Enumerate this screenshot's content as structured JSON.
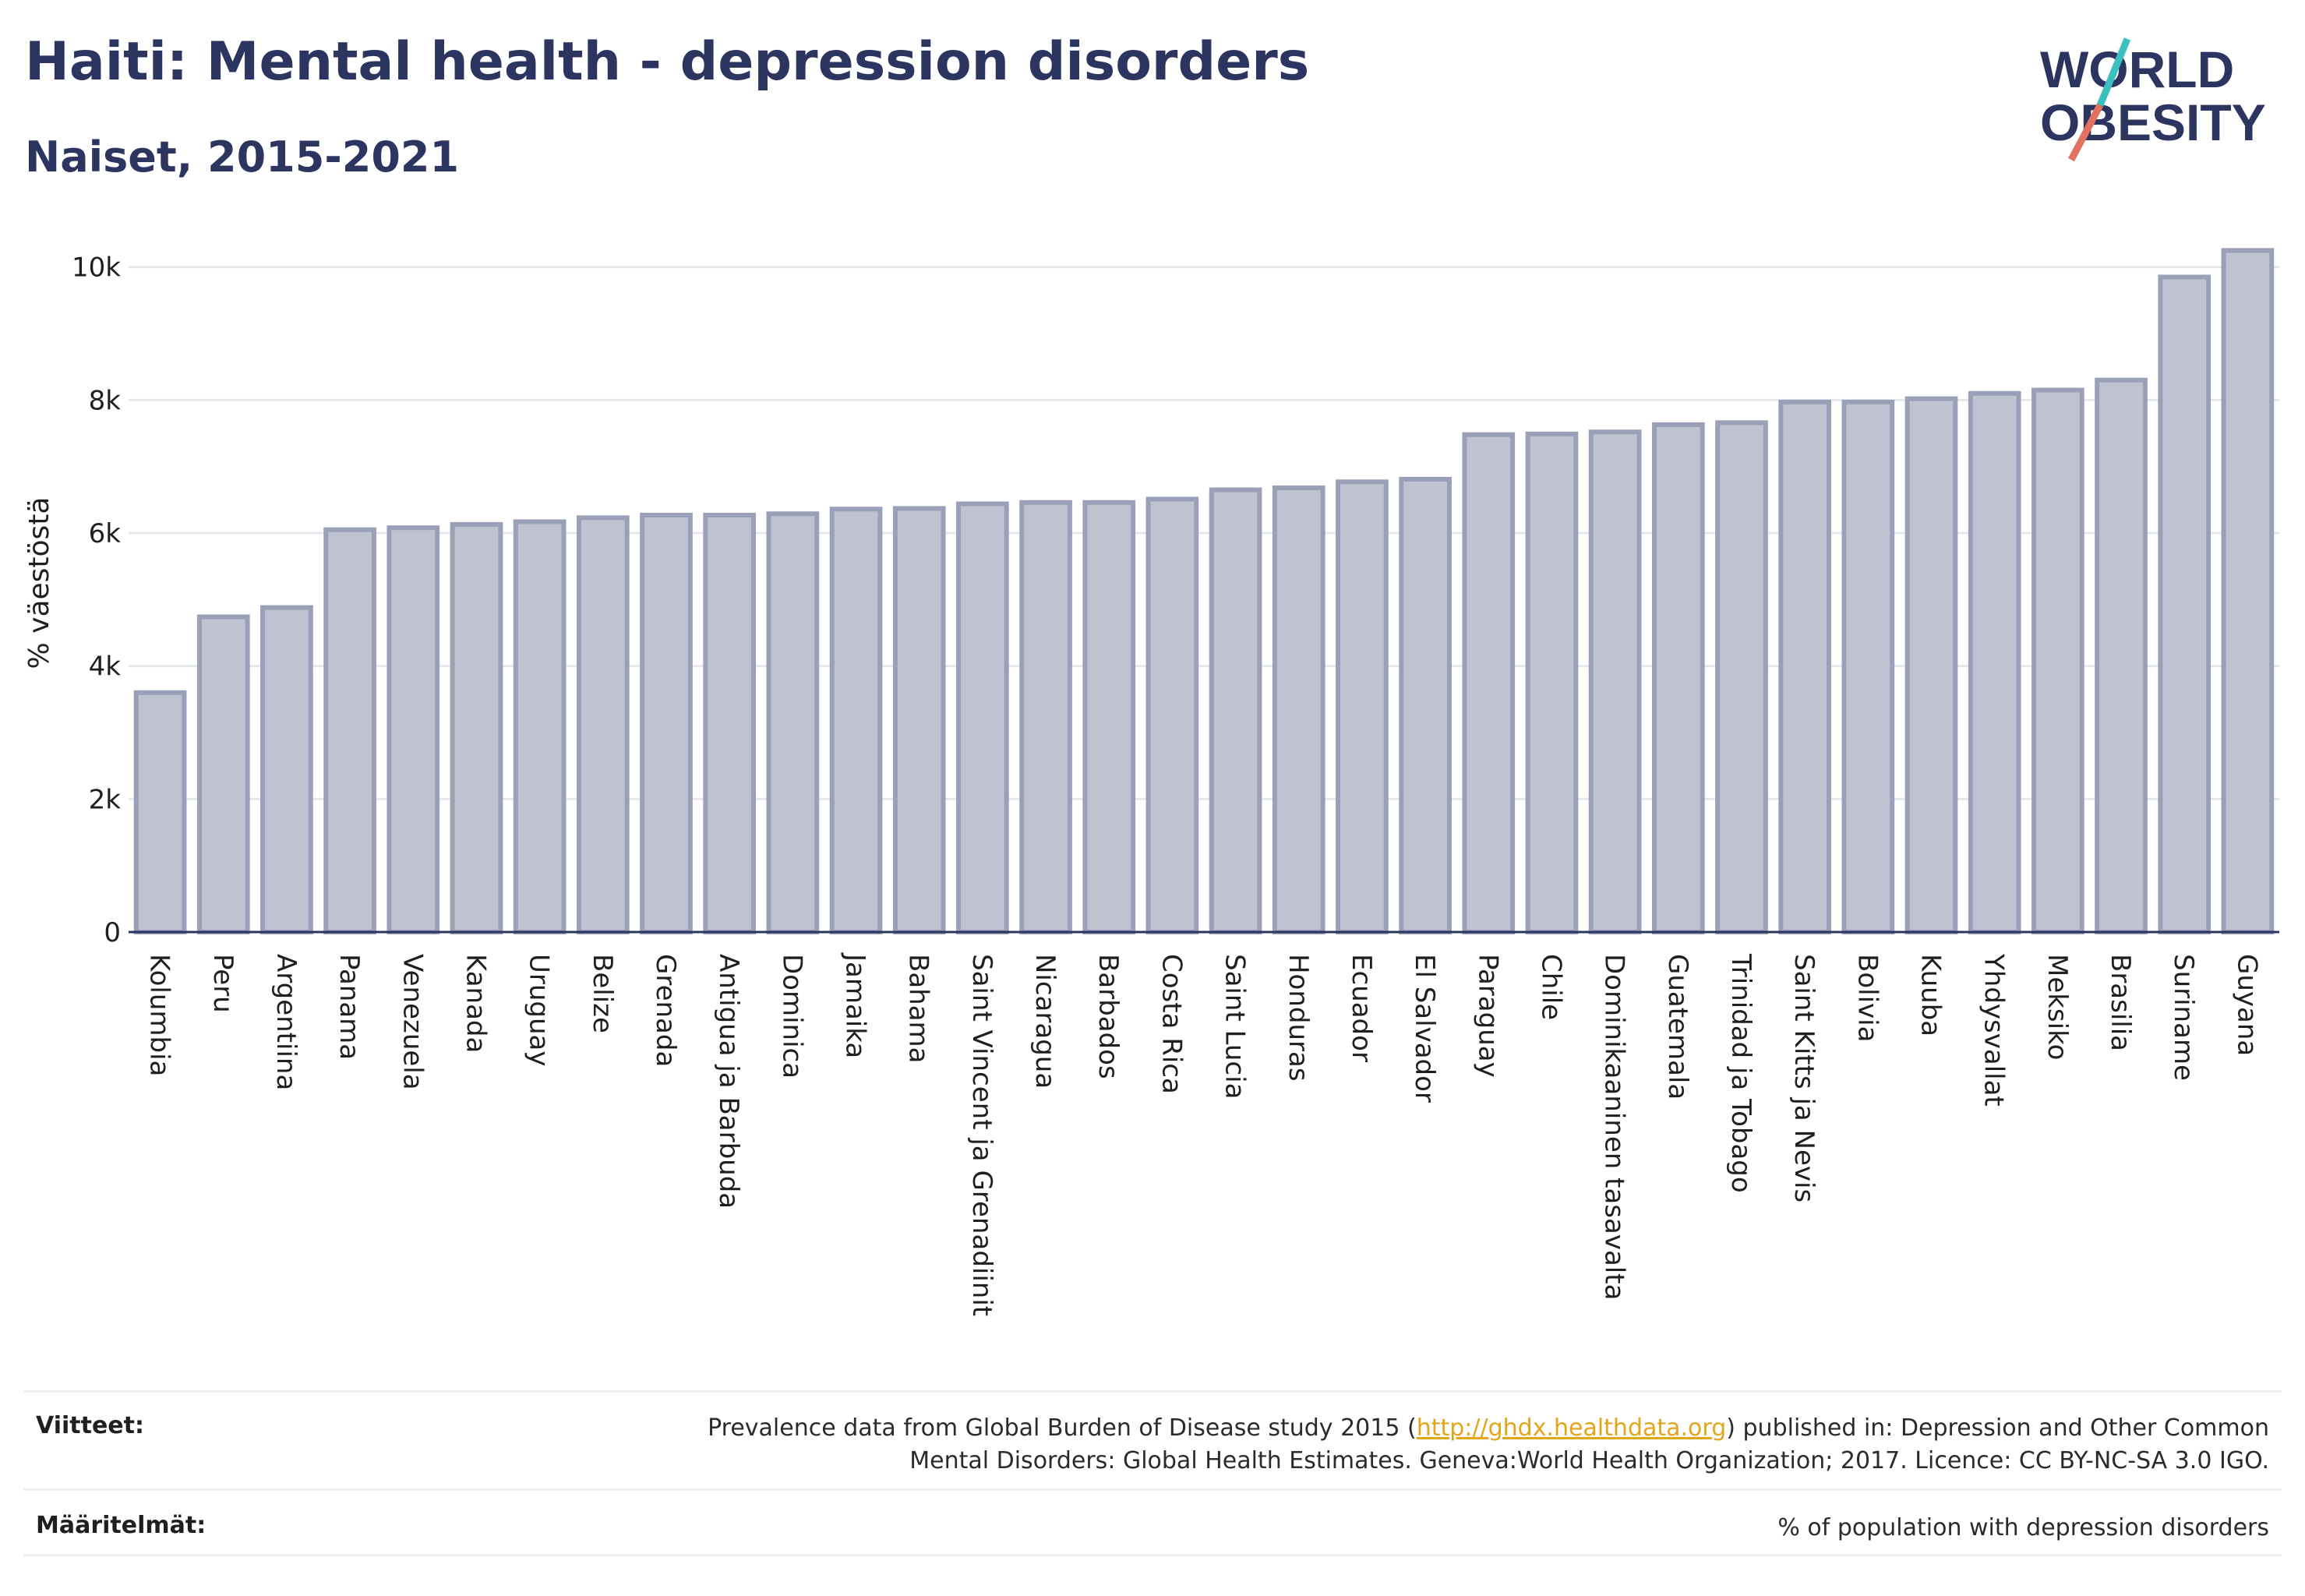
{
  "header": {
    "title": "Haiti: Mental health - depression disorders",
    "subtitle": "Naiset, 2015-2021"
  },
  "logo": {
    "line1": "WORLD",
    "line2": "OBESITY",
    "accent_teal": "#3cbfbf",
    "accent_coral": "#e2715f",
    "text_color": "#2b3560"
  },
  "colors": {
    "bar_fill": "#bfc3d1",
    "bar_stroke": "#9aa0b8",
    "axis": "#2b3560",
    "grid": "#e6e8ee"
  },
  "chart_data": {
    "type": "bar",
    "ylabel": "% väestöstä",
    "ylim": [
      0,
      10500
    ],
    "yticks": [
      0,
      2000,
      4000,
      6000,
      8000,
      10000
    ],
    "ytick_labels": [
      "0",
      "2k",
      "4k",
      "6k",
      "8k",
      "10k"
    ],
    "grid": true,
    "categories": [
      "Kolumbia",
      "Peru",
      "Argentiina",
      "Panama",
      "Venezuela",
      "Kanada",
      "Uruguay",
      "Belize",
      "Grenada",
      "Antigua ja Barbuda",
      "Dominica",
      "Jamaika",
      "Bahama",
      "Saint Vincent ja Grenadiinit",
      "Nicaragua",
      "Barbados",
      "Costa Rica",
      "Saint Lucia",
      "Honduras",
      "Ecuador",
      "El Salvador",
      "Paraguay",
      "Chile",
      "Dominikaaninen tasavalta",
      "Guatemala",
      "Trinidad ja Tobago",
      "Saint Kitts ja Nevis",
      "Bolivia",
      "Kuuba",
      "Yhdysvallat",
      "Meksiko",
      "Brasilia",
      "Suriname",
      "Guyana"
    ],
    "values": [
      3600,
      4740,
      4880,
      6050,
      6080,
      6130,
      6170,
      6230,
      6270,
      6270,
      6290,
      6360,
      6370,
      6440,
      6460,
      6460,
      6510,
      6650,
      6680,
      6770,
      6810,
      7480,
      7490,
      7520,
      7630,
      7660,
      7970,
      7970,
      8020,
      8100,
      8150,
      8300,
      9850,
      10250
    ]
  },
  "footer": {
    "sources_label": "Viitteet:",
    "sources_line1_pre": "Prevalence data from Global Burden of Disease study 2015 (",
    "sources_link": "http://ghdx.healthdata.org",
    "sources_line1_post": ") published in: Depression and Other Common",
    "sources_line2": "Mental Disorders: Global Health Estimates. Geneva:World Health Organization; 2017. Licence: CC BY-NC-SA 3.0 IGO.",
    "definitions_label": "Määritelmät:",
    "definitions_text": "% of population with depression disorders"
  }
}
